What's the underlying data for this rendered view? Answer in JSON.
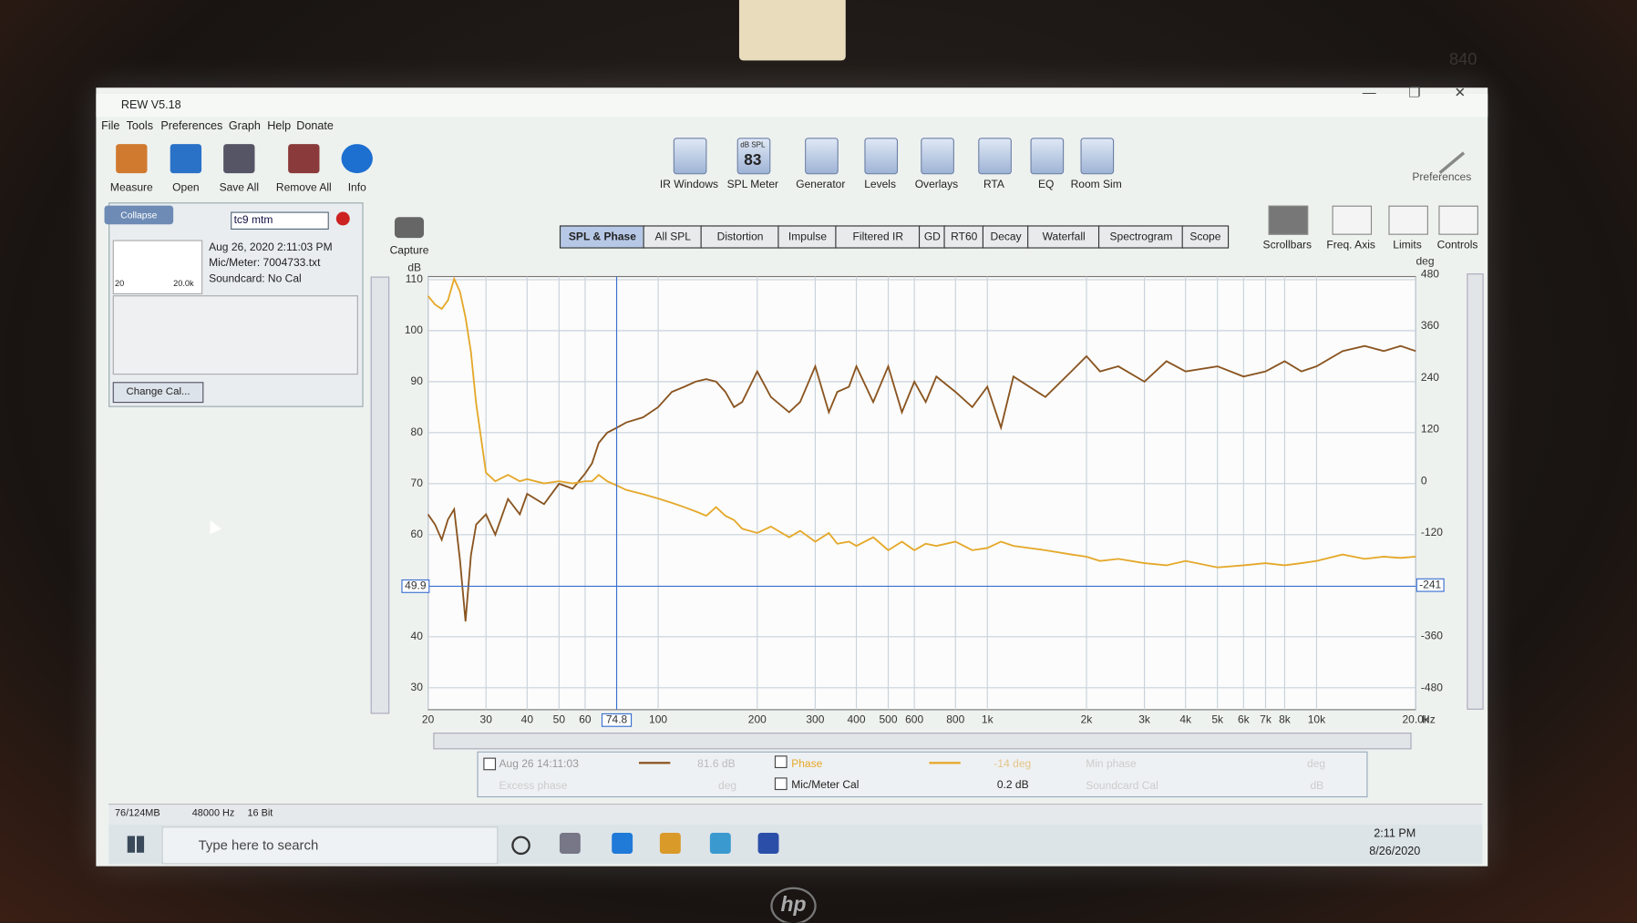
{
  "window": {
    "title": "REW V5.18"
  },
  "menu": [
    "File",
    "Tools",
    "Preferences",
    "Graph",
    "Help",
    "Donate"
  ],
  "toolbar_left": [
    "Measure",
    "Open",
    "Save All",
    "Remove All",
    "Info"
  ],
  "toolbar_center": [
    "IR Windows",
    "SPL Meter",
    "Generator",
    "Levels",
    "Overlays",
    "RTA",
    "EQ",
    "Room Sim"
  ],
  "spl_meter": {
    "unit": "dB SPL",
    "reading": "83"
  },
  "toolbar_right": [
    "Preferences"
  ],
  "graph_controls": [
    "Scrollbars",
    "Freq. Axis",
    "Limits",
    "Controls"
  ],
  "capture": "Capture",
  "tabs": [
    "SPL & Phase",
    "All SPL",
    "Distortion",
    "Impulse",
    "Filtered IR",
    "GD",
    "RT60",
    "Decay",
    "Waterfall",
    "Spectrogram",
    "Scope"
  ],
  "measurements": {
    "collapse": "Collapse",
    "name": "tc9 mtm",
    "date": "Aug 26, 2020 2:11:03 PM",
    "mic": "Mic/Meter: 7004733.txt",
    "soundcard": "Soundcard: No Cal",
    "thumb_low": "20",
    "thumb_high": "20.0k",
    "change_cal": "Change Cal..."
  },
  "chart_data": {
    "type": "line",
    "xscale": "log",
    "xlim": [
      20,
      20000
    ],
    "ylim": [
      25.7,
      110.6
    ],
    "y2lim": [
      -530,
      475
    ],
    "xlabel": "Hz",
    "ylabel": "dB",
    "y2label": "deg",
    "grid": true,
    "xticks": [
      20,
      30,
      40,
      50,
      60,
      100,
      200,
      300,
      400,
      500,
      600,
      800,
      {
        "value": 1000,
        "label": "1k"
      },
      {
        "value": 2000,
        "label": "2k"
      },
      {
        "value": 3000,
        "label": "3k"
      },
      {
        "value": 4000,
        "label": "4k"
      },
      {
        "value": 5000,
        "label": "5k"
      },
      {
        "value": 6000,
        "label": "6k"
      },
      {
        "value": 7000,
        "label": "7k"
      },
      {
        "value": 8000,
        "label": "8k"
      },
      {
        "value": 10000,
        "label": "10k"
      },
      {
        "value": 20000,
        "label": "20.0k"
      }
    ],
    "yticks": [
      30,
      40,
      60,
      70,
      80,
      90,
      100,
      110
    ],
    "y2ticks": [
      -480,
      -360,
      -120,
      0,
      120,
      240,
      360,
      480
    ],
    "cursor": {
      "x": 74.8,
      "y": 49.9,
      "y2": -241
    },
    "x": [
      20,
      21,
      22,
      23,
      24,
      25,
      26,
      27,
      28,
      30,
      32,
      35,
      38,
      40,
      45,
      50,
      55,
      60,
      63,
      66,
      70,
      75,
      80,
      90,
      100,
      110,
      120,
      130,
      140,
      150,
      160,
      170,
      180,
      200,
      220,
      250,
      270,
      300,
      330,
      350,
      380,
      400,
      450,
      500,
      550,
      600,
      650,
      700,
      800,
      900,
      1000,
      1100,
      1200,
      1500,
      1800,
      2000,
      2200,
      2500,
      3000,
      3500,
      4000,
      5000,
      6000,
      7000,
      8000,
      9000,
      10000,
      12000,
      14000,
      16000,
      18000,
      20000
    ],
    "series": [
      {
        "name": "Aug 26 14:11:03",
        "color": "#8a5420",
        "values": [
          64,
          62,
          59,
          63,
          65,
          55,
          43,
          56,
          62,
          64,
          60,
          67,
          64,
          68,
          66,
          70,
          69,
          72,
          74,
          78,
          80,
          81,
          82,
          83,
          85,
          88,
          89,
          90,
          90.5,
          90,
          88,
          85,
          86,
          92,
          87,
          84,
          86,
          93,
          84,
          88,
          89,
          93,
          86,
          93,
          84,
          90,
          86,
          91,
          88,
          85,
          89,
          81,
          91,
          87,
          92,
          95,
          92,
          93,
          90,
          94,
          92,
          93,
          91,
          92,
          94,
          92,
          93,
          96,
          97,
          96,
          97,
          96
        ]
      },
      {
        "name": "Phase",
        "color": "#e5a82a",
        "axis": "y2",
        "values": [
          430,
          410,
          400,
          420,
          470,
          440,
          380,
          300,
          180,
          20,
          0,
          15,
          0,
          5,
          -5,
          0,
          -5,
          0,
          0,
          15,
          0,
          -10,
          -20,
          -30,
          -40,
          -50,
          -60,
          -70,
          -80,
          -60,
          -80,
          -90,
          -110,
          -120,
          -105,
          -130,
          -115,
          -140,
          -120,
          -145,
          -140,
          -150,
          -130,
          -160,
          -140,
          -160,
          -145,
          -150,
          -140,
          -160,
          -155,
          -140,
          -150,
          -160,
          -170,
          -175,
          -185,
          -180,
          -190,
          -195,
          -185,
          -200,
          -195,
          -190,
          -195,
          -190,
          -185,
          -170,
          -180,
          -175,
          -178,
          -175
        ]
      }
    ]
  },
  "legend": {
    "spl_reading": "81.6 dB",
    "phase_reading": "-14 deg",
    "min_phase": "Min phase",
    "min_phase_unit": "deg",
    "excess_phase": "Excess phase",
    "excess_phase_unit": "deg",
    "mic_cal": "Mic/Meter Cal",
    "mic_cal_value": "0.2 dB",
    "soundcard_cal": "Soundcard Cal",
    "soundcard_cal_unit": "dB"
  },
  "status": [
    "76/124MB",
    "48000 Hz",
    "16 Bit"
  ],
  "taskbar": {
    "search": "Type here to search",
    "time": "2:11 PM",
    "date": "8/26/2020"
  },
  "bezel": {
    "brand": "hp",
    "model": "840"
  }
}
